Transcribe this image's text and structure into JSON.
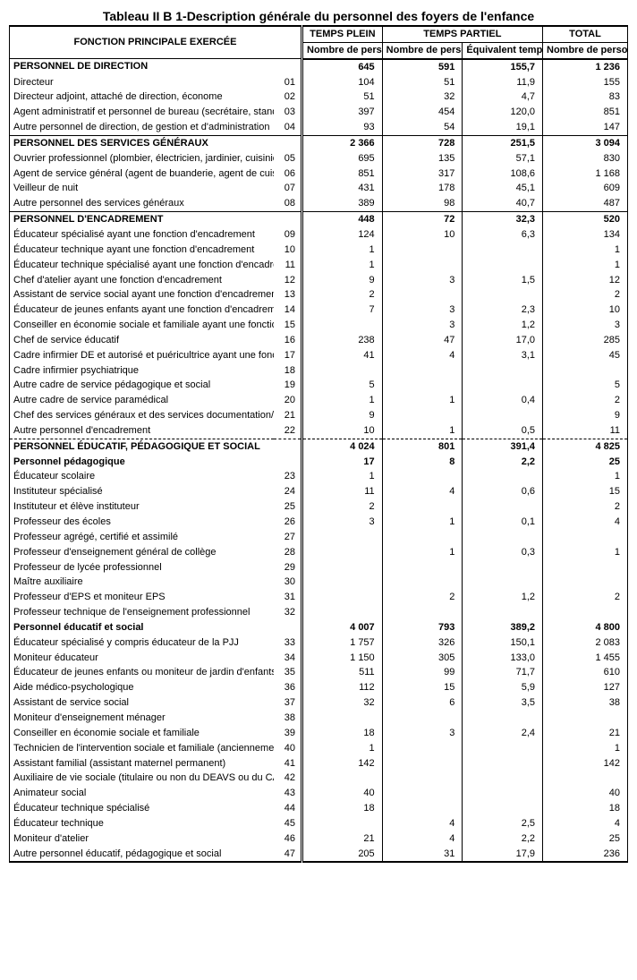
{
  "title": "Tableau II B 1-Description générale du personnel des foyers de l'enfance",
  "headers": {
    "function": "FONCTION PRINCIPALE EXERCÉE",
    "fulltime": "TEMPS PLEIN",
    "parttime": "TEMPS PARTIEL",
    "total": "TOTAL",
    "n_pers": "Nombre de personnes",
    "eq_tp": "Équivalent temps plein"
  },
  "rows": [
    {
      "t": "section",
      "label": "PERSONNEL DE DIRECTION",
      "tp": "645",
      "pp1": "591",
      "pp2": "155,7",
      "tot": "1 236"
    },
    {
      "t": "row",
      "label": "Directeur",
      "code": "01",
      "tp": "104",
      "pp1": "51",
      "pp2": "11,9",
      "tot": "155"
    },
    {
      "t": "row",
      "label": "Directeur adjoint, attaché de direction, économe",
      "code": "02",
      "tp": "51",
      "pp1": "32",
      "pp2": "4,7",
      "tot": "83"
    },
    {
      "t": "row",
      "label": "Agent administratif et personnel de bureau (secrétaire, standardiste...)",
      "code": "03",
      "tp": "397",
      "pp1": "454",
      "pp2": "120,0",
      "tot": "851"
    },
    {
      "t": "row",
      "label": "Autre personnel de direction, de gestion et d'administration",
      "code": "04",
      "tp": "93",
      "pp1": "54",
      "pp2": "19,1",
      "tot": "147",
      "lastBefore": true
    },
    {
      "t": "section",
      "label": "PERSONNEL DES SERVICES GÉNÉRAUX",
      "tp": "2 366",
      "pp1": "728",
      "pp2": "251,5",
      "tot": "3 094"
    },
    {
      "t": "row",
      "label": "Ouvrier professionnel (plombier, électricien, jardinier, cuisinier...)",
      "code": "05",
      "tp": "695",
      "pp1": "135",
      "pp2": "57,1",
      "tot": "830"
    },
    {
      "t": "row",
      "label": "Agent de service général (agent de buanderie, agent de cuisine...)",
      "code": "06",
      "tp": "851",
      "pp1": "317",
      "pp2": "108,6",
      "tot": "1 168"
    },
    {
      "t": "row",
      "label": "Veilleur de nuit",
      "code": "07",
      "tp": "431",
      "pp1": "178",
      "pp2": "45,1",
      "tot": "609"
    },
    {
      "t": "row",
      "label": "Autre personnel des services généraux",
      "code": "08",
      "tp": "389",
      "pp1": "98",
      "pp2": "40,7",
      "tot": "487",
      "lastBefore": true
    },
    {
      "t": "section",
      "label": "PERSONNEL D'ENCADREMENT",
      "tp": "448",
      "pp1": "72",
      "pp2": "32,3",
      "tot": "520"
    },
    {
      "t": "row",
      "label": "Éducateur spécialisé ayant une fonction d'encadrement",
      "code": "09",
      "tp": "124",
      "pp1": "10",
      "pp2": "6,3",
      "tot": "134"
    },
    {
      "t": "row",
      "label": "Éducateur technique ayant une fonction d'encadrement",
      "code": "10",
      "tp": "1",
      "pp1": "",
      "pp2": "",
      "tot": "1"
    },
    {
      "t": "row",
      "label": "Éducateur technique spécialisé ayant une fonction d'encadrement",
      "code": "11",
      "tp": "1",
      "pp1": "",
      "pp2": "",
      "tot": "1"
    },
    {
      "t": "row",
      "label": "Chef d'atelier ayant une fonction d'encadrement",
      "code": "12",
      "tp": "9",
      "pp1": "3",
      "pp2": "1,5",
      "tot": "12"
    },
    {
      "t": "row",
      "label": "Assistant de service social ayant une fonction d'encadrement",
      "code": "13",
      "tp": "2",
      "pp1": "",
      "pp2": "",
      "tot": "2"
    },
    {
      "t": "row",
      "label": "Éducateur de jeunes enfants ayant une fonction d'encadrement",
      "code": "14",
      "tp": "7",
      "pp1": "3",
      "pp2": "2,3",
      "tot": "10"
    },
    {
      "t": "row",
      "label": "Conseiller en économie sociale et familiale ayant une fonction d'encadrement",
      "code": "15",
      "tp": "",
      "pp1": "3",
      "pp2": "1,2",
      "tot": "3"
    },
    {
      "t": "row",
      "label": "Chef de service éducatif",
      "code": "16",
      "tp": "238",
      "pp1": "47",
      "pp2": "17,0",
      "tot": "285"
    },
    {
      "t": "row",
      "label": "Cadre infirmier DE et autorisé et puéricultrice ayant une fonction d'encadrement",
      "code": "17",
      "tp": "41",
      "pp1": "4",
      "pp2": "3,1",
      "tot": "45"
    },
    {
      "t": "row",
      "label": "Cadre infirmier psychiatrique",
      "code": "18",
      "tp": "",
      "pp1": "",
      "pp2": "",
      "tot": ""
    },
    {
      "t": "row",
      "label": "Autre cadre de service pédagogique et social",
      "code": "19",
      "tp": "5",
      "pp1": "",
      "pp2": "",
      "tot": "5"
    },
    {
      "t": "row",
      "label": "Autre cadre de service paramédical",
      "code": "20",
      "tp": "1",
      "pp1": "1",
      "pp2": "0,4",
      "tot": "2"
    },
    {
      "t": "row",
      "label": "Chef des services généraux et des services documentation/informatique",
      "code": "21",
      "tp": "9",
      "pp1": "",
      "pp2": "",
      "tot": "9"
    },
    {
      "t": "row",
      "label": "Autre personnel d'encadrement",
      "code": "22",
      "tp": "10",
      "pp1": "1",
      "pp2": "0,5",
      "tot": "11",
      "lastDash": true
    },
    {
      "t": "section-dash",
      "label": "PERSONNEL ÉDUCATIF, PÉDAGOGIQUE ET SOCIAL",
      "tp": "4 024",
      "pp1": "801",
      "pp2": "391,4",
      "tot": "4 825"
    },
    {
      "t": "subhead",
      "label": "Personnel pédagogique",
      "tp": "17",
      "pp1": "8",
      "pp2": "2,2",
      "tot": "25"
    },
    {
      "t": "row",
      "label": "Éducateur scolaire",
      "code": "23",
      "tp": "1",
      "pp1": "",
      "pp2": "",
      "tot": "1"
    },
    {
      "t": "row",
      "label": "Instituteur spécialisé",
      "code": "24",
      "tp": "11",
      "pp1": "4",
      "pp2": "0,6",
      "tot": "15"
    },
    {
      "t": "row",
      "label": "Instituteur et élève instituteur",
      "code": "25",
      "tp": "2",
      "pp1": "",
      "pp2": "",
      "tot": "2"
    },
    {
      "t": "row",
      "label": "Professeur des écoles",
      "code": "26",
      "tp": "3",
      "pp1": "1",
      "pp2": "0,1",
      "tot": "4"
    },
    {
      "t": "row",
      "label": "Professeur agrégé, certifié et assimilé",
      "code": "27",
      "tp": "",
      "pp1": "",
      "pp2": "",
      "tot": ""
    },
    {
      "t": "row",
      "label": "Professeur d'enseignement général de collège",
      "code": "28",
      "tp": "",
      "pp1": "1",
      "pp2": "0,3",
      "tot": "1"
    },
    {
      "t": "row",
      "label": "Professeur de lycée professionnel",
      "code": "29",
      "tp": "",
      "pp1": "",
      "pp2": "",
      "tot": ""
    },
    {
      "t": "row",
      "label": "Maître auxiliaire",
      "code": "30",
      "tp": "",
      "pp1": "",
      "pp2": "",
      "tot": ""
    },
    {
      "t": "row",
      "label": "Professeur d'EPS et moniteur EPS",
      "code": "31",
      "tp": "",
      "pp1": "2",
      "pp2": "1,2",
      "tot": "2"
    },
    {
      "t": "row",
      "label": "Professeur technique de l'enseignement professionnel",
      "code": "32",
      "tp": "",
      "pp1": "",
      "pp2": "",
      "tot": ""
    },
    {
      "t": "subhead",
      "label": "Personnel éducatif et social",
      "tp": "4 007",
      "pp1": "793",
      "pp2": "389,2",
      "tot": "4 800"
    },
    {
      "t": "row",
      "label": "Éducateur spécialisé y compris éducateur de la PJJ",
      "code": "33",
      "tp": "1 757",
      "pp1": "326",
      "pp2": "150,1",
      "tot": "2 083"
    },
    {
      "t": "row",
      "label": "Moniteur éducateur",
      "code": "34",
      "tp": "1 150",
      "pp1": "305",
      "pp2": "133,0",
      "tot": "1 455"
    },
    {
      "t": "row",
      "label": "Éducateur de jeunes enfants ou moniteur de jardin d'enfants",
      "code": "35",
      "tp": "511",
      "pp1": "99",
      "pp2": "71,7",
      "tot": "610"
    },
    {
      "t": "row",
      "label": "Aide médico-psychologique",
      "code": "36",
      "tp": "112",
      "pp1": "15",
      "pp2": "5,9",
      "tot": "127"
    },
    {
      "t": "row",
      "label": "Assistant de service social",
      "code": "37",
      "tp": "32",
      "pp1": "6",
      "pp2": "3,5",
      "tot": "38"
    },
    {
      "t": "row",
      "label": "Moniteur d'enseignement ménager",
      "code": "38",
      "tp": "",
      "pp1": "",
      "pp2": "",
      "tot": ""
    },
    {
      "t": "row",
      "label": "Conseiller en économie sociale et familiale",
      "code": "39",
      "tp": "18",
      "pp1": "3",
      "pp2": "2,4",
      "tot": "21"
    },
    {
      "t": "row",
      "label": "Technicien de l'intervention sociale et familiale (anciennement travailleuse familiale)",
      "code": "40",
      "tp": "1",
      "pp1": "",
      "pp2": "",
      "tot": "1"
    },
    {
      "t": "row",
      "label": "Assistant familial (assistant maternel permanent)",
      "code": "41",
      "tp": "142",
      "pp1": "",
      "pp2": "",
      "tot": "142"
    },
    {
      "t": "row",
      "label": "Auxiliaire de vie sociale (titulaire ou non du DEAVS ou du CAFAD)",
      "code": "42",
      "tp": "",
      "pp1": "",
      "pp2": "",
      "tot": ""
    },
    {
      "t": "row",
      "label": "Animateur social",
      "code": "43",
      "tp": "40",
      "pp1": "",
      "pp2": "",
      "tot": "40"
    },
    {
      "t": "row",
      "label": "Éducateur technique spécialisé",
      "code": "44",
      "tp": "18",
      "pp1": "",
      "pp2": "",
      "tot": "18"
    },
    {
      "t": "row",
      "label": "Éducateur technique",
      "code": "45",
      "tp": "",
      "pp1": "4",
      "pp2": "2,5",
      "tot": "4"
    },
    {
      "t": "row",
      "label": "Moniteur d'atelier",
      "code": "46",
      "tp": "21",
      "pp1": "4",
      "pp2": "2,2",
      "tot": "25"
    },
    {
      "t": "row",
      "label": "Autre personnel éducatif, pédagogique et social",
      "code": "47",
      "tp": "205",
      "pp1": "31",
      "pp2": "17,9",
      "tot": "236"
    }
  ]
}
